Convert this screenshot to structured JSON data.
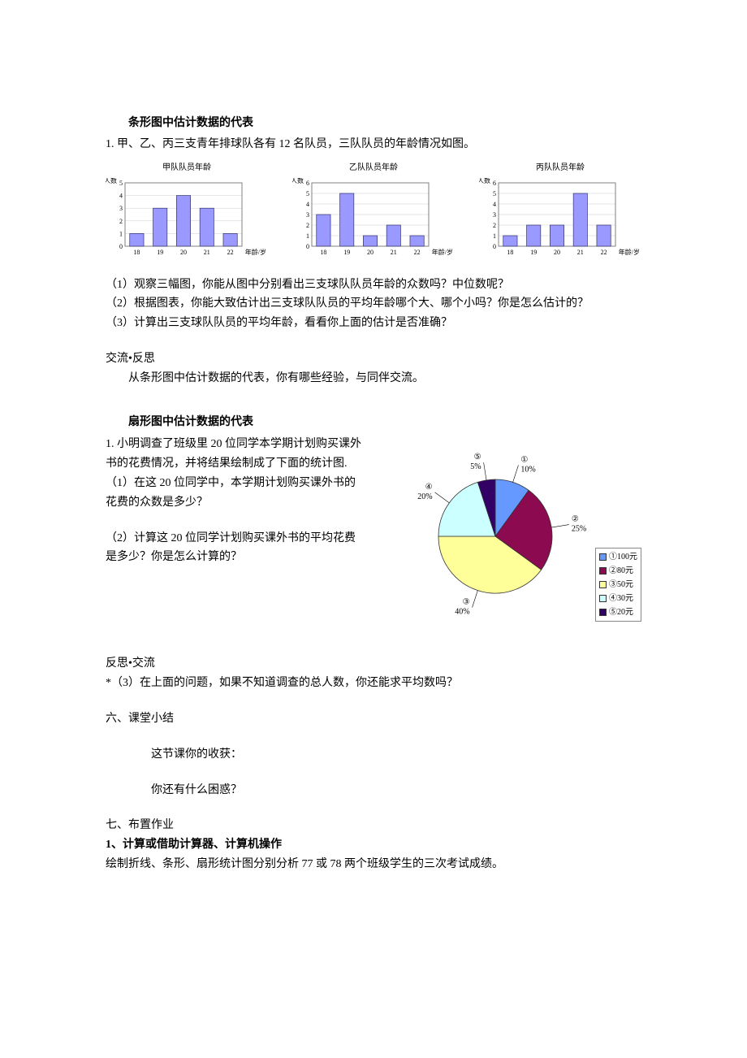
{
  "section1": {
    "title": "条形图中估计数据的代表",
    "problem_intro": "1. 甲、乙、丙三支青年排球队各有 12 名队员，三队队员的年龄情况如图。",
    "questions": {
      "q1": "（1）观察三幅图，你能从图中分别看出三支球队队员年龄的众数吗？中位数呢？",
      "q2": "（2）根据图表，你能大致估计出三支球队队员的平均年龄哪个大、哪个小吗？你是怎么估计的？",
      "q3": "（3）计算出三支球队队员的平均年龄，看看你上面的估计是否准确？"
    },
    "reflect_header": "交流•反思",
    "reflect_text": "从条形图中估计数据的代表，你有哪些经验，与同伴交流。"
  },
  "bar_charts": {
    "common": {
      "x_categories": [
        "18",
        "19",
        "20",
        "21",
        "22"
      ],
      "x_label": "年龄/岁",
      "y_label": "人数",
      "bar_fill": "#9999ff",
      "bar_stroke": "#333366",
      "grid_color": "#cccccc",
      "border_color": "#808080",
      "text_color": "#000000",
      "title_fontsize": 10,
      "axis_fontsize": 8
    },
    "chart_a": {
      "title": "甲队队员年龄",
      "values": [
        1,
        3,
        4,
        3,
        1
      ],
      "y_ticks": [
        0,
        1,
        2,
        3,
        4,
        5
      ],
      "ylim": [
        0,
        5
      ]
    },
    "chart_b": {
      "title": "乙队队员年龄",
      "values": [
        3,
        5,
        1,
        2,
        1
      ],
      "y_ticks": [
        0,
        1,
        2,
        3,
        4,
        5,
        6
      ],
      "ylim": [
        0,
        6
      ]
    },
    "chart_c": {
      "title": "丙队队员年龄",
      "values": [
        1,
        2,
        2,
        5,
        2
      ],
      "y_ticks": [
        0,
        1,
        2,
        3,
        4,
        5,
        6
      ],
      "ylim": [
        0,
        6
      ]
    }
  },
  "section2": {
    "title": "扇形图中估计数据的代表",
    "problem_intro": "1. 小明调查了班级里 20 位同学本学期计划购买课外书的花费情况，并将结果绘制成了下面的统计图.",
    "q1": "（1）在这 20 位同学中，本学期计划购买课外书的花费的众数是多少？",
    "q2": "（2）计算这 20 位同学计划购买课外书的平均花费是多少？你是怎么计算的？",
    "reflect_header": "反思•交流",
    "q3": "*（3）在上面的问题，如果不知道调查的总人数，你还能求平均数吗？"
  },
  "pie_chart": {
    "background_color": "#ffffff",
    "stroke_color": "#333333",
    "slices": [
      {
        "id": "①",
        "percent": 10,
        "label": "①100元",
        "color": "#6699ff",
        "callout": "①",
        "callout_pct": "10%"
      },
      {
        "id": "②",
        "percent": 25,
        "label": "②80元",
        "color": "#8b0a50",
        "callout": "②",
        "callout_pct": "25%"
      },
      {
        "id": "③",
        "percent": 40,
        "label": "③50元",
        "color": "#ffff99",
        "callout": "③",
        "callout_pct": "40%"
      },
      {
        "id": "④",
        "percent": 20,
        "label": "④30元",
        "color": "#ccffff",
        "callout": "④",
        "callout_pct": "20%"
      },
      {
        "id": "⑤",
        "percent": 5,
        "label": "⑤20元",
        "color": "#330066",
        "callout": "⑤",
        "callout_pct": "5%"
      }
    ],
    "callout_fontsize": 10
  },
  "section3": {
    "header": "六、课堂小结",
    "line1": "这节课你的收获：",
    "line2": "你还有什么困惑？"
  },
  "section4": {
    "header": "七、布置作业",
    "sub_bold": "1、计算或借助计算器、计算机操作",
    "line": "绘制折线、条形、扇形统计图分别分析 77 或 78 两个班级学生的三次考试成绩。"
  }
}
